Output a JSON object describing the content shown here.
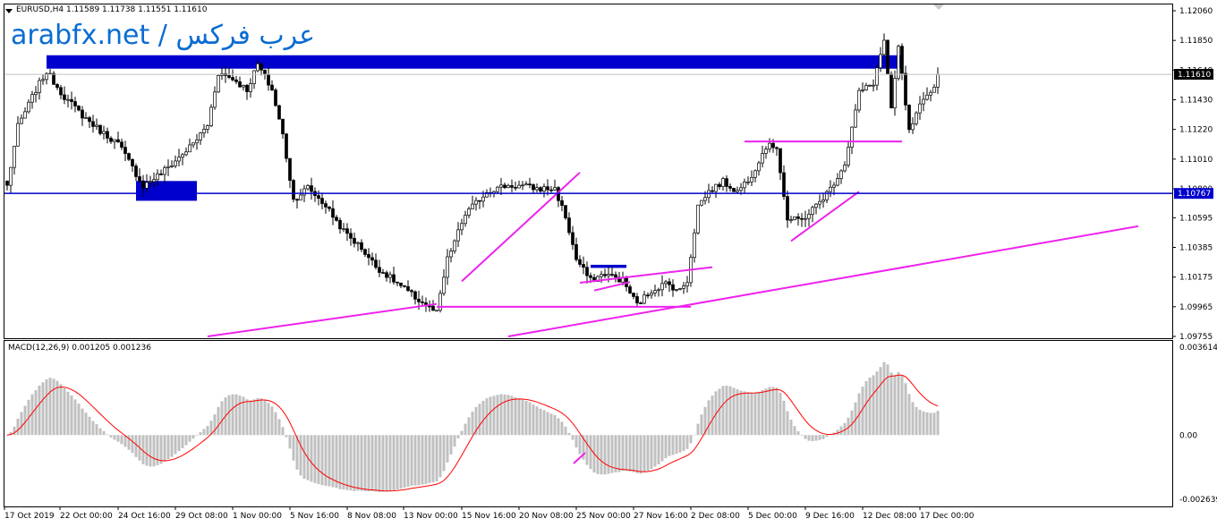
{
  "header": {
    "symbol_title": "EURUSD,H4  1.11589 1.11738 1.11551 1.11610",
    "watermark": "arabfx.net / عرب فركس",
    "macd_title": "MACD(12,26,9) 0.001205 0.001236"
  },
  "colors": {
    "bull_body": "#ffffff",
    "bear_body": "#000000",
    "wick": "#000000",
    "zone": "#0000cc",
    "trendline": "#ee22ee",
    "hline": "#0000cc",
    "hist": "#c0c0c0",
    "signal": "#ff0000",
    "grid_bid": "#c0c0c0",
    "price_tag_bg": "#000000",
    "price_tag_hl_bg": "#0000cc"
  },
  "chart_data": [
    {
      "type": "candlestick",
      "symbol": "EURUSD",
      "timeframe": "H4",
      "ylim": [
        1.09755,
        1.1206
      ],
      "y_ticks": [
        "1.12060",
        "1.11850",
        "1.11640",
        "1.11430",
        "1.11220",
        "1.11010",
        "1.10800",
        "1.10595",
        "1.10385",
        "1.10175",
        "1.09965",
        "1.09755"
      ],
      "x_ticks": [
        "17 Oct 2019",
        "22 Oct 00:00",
        "24 Oct 16:00",
        "29 Oct 08:00",
        "1 Nov 00:00",
        "5 Nov 16:00",
        "8 Nov 08:00",
        "13 Nov 00:00",
        "15 Nov 16:00",
        "20 Nov 08:00",
        "25 Nov 00:00",
        "27 Nov 16:00",
        "2 Dec 08:00",
        "5 Dec 00:00",
        "9 Dec 16:00",
        "12 Dec 08:00",
        "17 Dec 00:00"
      ],
      "current_price": "1.11610",
      "level_price": "1.10767",
      "anchors": [
        [
          0,
          1.1082
        ],
        [
          3,
          1.1124
        ],
        [
          8,
          1.115
        ],
        [
          11,
          1.1163
        ],
        [
          16,
          1.1145
        ],
        [
          21,
          1.1132
        ],
        [
          26,
          1.1121
        ],
        [
          31,
          1.1112
        ],
        [
          35,
          1.1095
        ],
        [
          38,
          1.1082
        ],
        [
          43,
          1.1091
        ],
        [
          48,
          1.1102
        ],
        [
          52,
          1.1112
        ],
        [
          56,
          1.1125
        ],
        [
          59,
          1.1162
        ],
        [
          63,
          1.1158
        ],
        [
          67,
          1.115
        ],
        [
          70,
          1.1168
        ],
        [
          74,
          1.115
        ],
        [
          77,
          1.1118
        ],
        [
          80,
          1.1072
        ],
        [
          84,
          1.1081
        ],
        [
          89,
          1.1068
        ],
        [
          94,
          1.105
        ],
        [
          99,
          1.1038
        ],
        [
          103,
          1.1025
        ],
        [
          108,
          1.1015
        ],
        [
          114,
          1.1003
        ],
        [
          120,
          1.0992
        ],
        [
          123,
          1.103
        ],
        [
          128,
          1.1062
        ],
        [
          134,
          1.1078
        ],
        [
          139,
          1.1082
        ],
        [
          144,
          1.1082
        ],
        [
          148,
          1.108
        ],
        [
          153,
          1.108
        ],
        [
          156,
          1.106
        ],
        [
          159,
          1.103
        ],
        [
          163,
          1.1015
        ],
        [
          167,
          1.102
        ],
        [
          172,
          1.1015
        ],
        [
          176,
          1.0998
        ],
        [
          180,
          1.1008
        ],
        [
          184,
          1.1013
        ],
        [
          188,
          1.1008
        ],
        [
          190,
          1.1015
        ],
        [
          193,
          1.1068
        ],
        [
          196,
          1.1078
        ],
        [
          200,
          1.1085
        ],
        [
          204,
          1.1078
        ],
        [
          208,
          1.109
        ],
        [
          212,
          1.111
        ],
        [
          215,
          1.111
        ],
        [
          218,
          1.1058
        ],
        [
          222,
          1.1058
        ],
        [
          226,
          1.1068
        ],
        [
          230,
          1.108
        ],
        [
          234,
          1.1098
        ],
        [
          238,
          1.1148
        ],
        [
          242,
          1.1155
        ],
        [
          245,
          1.1185
        ],
        [
          247,
          1.1135
        ],
        [
          249,
          1.118
        ],
        [
          252,
          1.112
        ],
        [
          255,
          1.1138
        ],
        [
          258,
          1.1148
        ],
        [
          260,
          1.116
        ]
      ],
      "zones": [
        {
          "from_bar": 11,
          "to_bar": 250,
          "low": 1.1165,
          "high": 1.11745
        },
        {
          "from_bar": 36,
          "to_bar": 53,
          "low": 1.10715,
          "high": 1.10855
        },
        {
          "from_bar": 163,
          "to_bar": 173,
          "low": 1.1024,
          "high": 1.10262
        }
      ],
      "trendlines": [
        {
          "b1": 56,
          "p1": 1.09755,
          "b2": 120,
          "p2": 1.09985
        },
        {
          "b1": 140,
          "p1": 1.09755,
          "b2": 316,
          "p2": 1.10535
        },
        {
          "b1": 120,
          "p1": 1.09965,
          "b2": 191,
          "p2": 1.09965
        },
        {
          "b1": 127,
          "p1": 1.10145,
          "b2": 160,
          "p2": 1.10915
        },
        {
          "b1": 160,
          "p1": 1.10135,
          "b2": 197,
          "p2": 1.10245
        },
        {
          "b1": 164,
          "p1": 1.1008,
          "b2": 174,
          "p2": 1.1014
        },
        {
          "b1": 206,
          "p1": 1.11135,
          "b2": 250,
          "p2": 1.11135
        },
        {
          "b1": 219,
          "p1": 1.1043,
          "b2": 238,
          "p2": 1.1078
        }
      ]
    },
    {
      "type": "bar",
      "indicator": "MACD(12,26,9)",
      "macd": "0.001205",
      "signal": "0.001236",
      "ylim": [
        -0.002639,
        0.003614
      ],
      "y_ticks": [
        "0.003614",
        "0.00",
        "-0.002639"
      ]
    }
  ]
}
